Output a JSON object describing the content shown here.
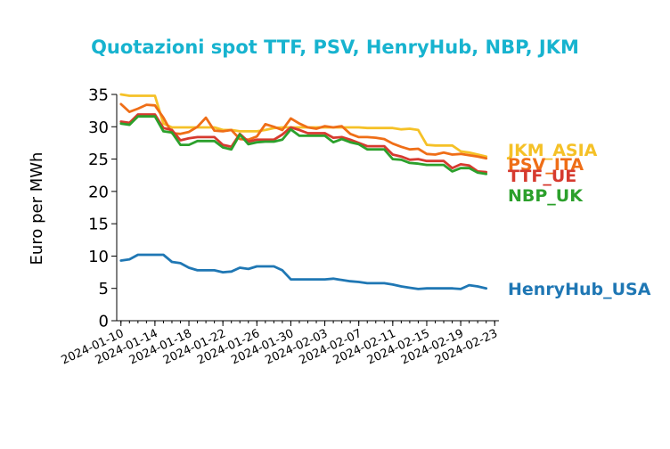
{
  "chart_data": {
    "type": "line",
    "title": "Quotazioni spot TTF, PSV, HenryHub, NBP, JKM",
    "xlabel": "",
    "ylabel": "Euro per MWh",
    "ylim": [
      0,
      35
    ],
    "yticks": [
      0,
      5,
      10,
      15,
      20,
      25,
      30,
      35
    ],
    "xticks": [
      "2024-01-10",
      "2024-01-14",
      "2024-01-18",
      "2024-01-22",
      "2024-01-26",
      "2024-01-30",
      "2024-02-03",
      "2024-02-07",
      "2024-02-11",
      "2024-02-15",
      "2024-02-19",
      "2024-02-23"
    ],
    "grid": false,
    "legend": "inline labels at right end of lines",
    "x": [
      "2024-01-10",
      "2024-01-11",
      "2024-01-12",
      "2024-01-13",
      "2024-01-14",
      "2024-01-15",
      "2024-01-16",
      "2024-01-17",
      "2024-01-18",
      "2024-01-19",
      "2024-01-20",
      "2024-01-21",
      "2024-01-22",
      "2024-01-23",
      "2024-01-24",
      "2024-01-25",
      "2024-01-26",
      "2024-01-27",
      "2024-01-28",
      "2024-01-29",
      "2024-01-30",
      "2024-01-31",
      "2024-02-01",
      "2024-02-02",
      "2024-02-03",
      "2024-02-04",
      "2024-02-05",
      "2024-02-06",
      "2024-02-07",
      "2024-02-08",
      "2024-02-09",
      "2024-02-10",
      "2024-02-11",
      "2024-02-12",
      "2024-02-13",
      "2024-02-14",
      "2024-02-15",
      "2024-02-16",
      "2024-02-17",
      "2024-02-18",
      "2024-02-19",
      "2024-02-20",
      "2024-02-21",
      "2024-02-22"
    ],
    "series": [
      {
        "name": "JKM_ASIA",
        "color": "#f5c127",
        "values": [
          35.0,
          34.8,
          34.8,
          34.8,
          34.8,
          30.5,
          29.9,
          29.9,
          29.9,
          29.9,
          29.9,
          29.9,
          29.5,
          29.5,
          29.3,
          29.3,
          29.3,
          29.5,
          29.8,
          29.9,
          29.9,
          29.9,
          29.9,
          29.9,
          29.9,
          29.9,
          29.9,
          29.9,
          29.9,
          29.8,
          29.8,
          29.8,
          29.8,
          29.6,
          29.7,
          29.5,
          27.2,
          27.1,
          27.1,
          27.1,
          26.2,
          26.0,
          25.7,
          25.4
        ]
      },
      {
        "name": "PSV_ITA",
        "color": "#ef6e17",
        "values": [
          33.5,
          32.3,
          32.8,
          33.4,
          33.3,
          31.4,
          29.0,
          28.9,
          29.2,
          30.0,
          31.4,
          29.4,
          29.3,
          29.5,
          28.1,
          28.0,
          28.5,
          30.4,
          30.0,
          29.5,
          31.3,
          30.5,
          29.9,
          29.7,
          30.1,
          29.9,
          30.1,
          28.9,
          28.4,
          28.4,
          28.3,
          28.1,
          27.4,
          26.9,
          26.5,
          26.6,
          25.8,
          25.7,
          26.0,
          25.7,
          25.8,
          25.6,
          25.4,
          25.1
        ]
      },
      {
        "name": "TTF_UE",
        "color": "#d63a2f",
        "values": [
          30.8,
          30.6,
          31.9,
          31.9,
          31.9,
          29.8,
          29.5,
          27.9,
          28.2,
          28.4,
          28.4,
          28.4,
          27.2,
          26.9,
          28.9,
          27.7,
          28.0,
          28.0,
          28.0,
          28.8,
          29.9,
          29.5,
          29.0,
          29.0,
          29.0,
          28.3,
          28.4,
          28.0,
          27.5,
          27.0,
          27.0,
          27.0,
          25.7,
          25.4,
          24.9,
          25.0,
          24.7,
          24.7,
          24.7,
          23.6,
          24.2,
          24.0,
          23.1,
          23.0
        ]
      },
      {
        "name": "NBP_UK",
        "color": "#2ca02c",
        "values": [
          30.5,
          30.3,
          31.6,
          31.6,
          31.6,
          29.3,
          29.1,
          27.2,
          27.2,
          27.8,
          27.8,
          27.8,
          26.8,
          26.5,
          28.8,
          27.3,
          27.6,
          27.7,
          27.7,
          28.0,
          29.6,
          28.6,
          28.6,
          28.6,
          28.6,
          27.6,
          28.1,
          27.6,
          27.3,
          26.5,
          26.5,
          26.5,
          25.0,
          24.9,
          24.4,
          24.3,
          24.1,
          24.1,
          24.1,
          23.1,
          23.6,
          23.6,
          22.9,
          22.7
        ]
      },
      {
        "name": "HenryHub_USA",
        "color": "#1f77b4",
        "values": [
          9.3,
          9.5,
          10.2,
          10.2,
          10.2,
          10.2,
          9.1,
          8.9,
          8.2,
          7.8,
          7.8,
          7.8,
          7.5,
          7.6,
          8.2,
          8.0,
          8.4,
          8.4,
          8.4,
          7.8,
          6.4,
          6.4,
          6.4,
          6.4,
          6.4,
          6.5,
          6.3,
          6.1,
          6.0,
          5.8,
          5.8,
          5.8,
          5.6,
          5.3,
          5.1,
          4.9,
          5.0,
          5.0,
          5.0,
          5.0,
          4.9,
          5.5,
          5.3,
          5.0
        ]
      }
    ]
  }
}
